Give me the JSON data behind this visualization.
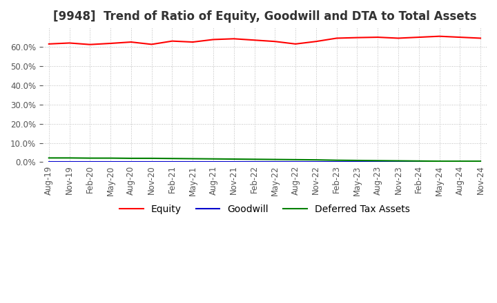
{
  "title": "[9948]  Trend of Ratio of Equity, Goodwill and DTA to Total Assets",
  "x_labels": [
    "Aug-19",
    "Nov-19",
    "Feb-20",
    "May-20",
    "Aug-20",
    "Nov-20",
    "Feb-21",
    "May-21",
    "Aug-21",
    "Nov-21",
    "Feb-22",
    "May-22",
    "Aug-22",
    "Nov-22",
    "Feb-23",
    "May-23",
    "Aug-23",
    "Nov-23",
    "Feb-24",
    "May-24",
    "Aug-24",
    "Nov-24"
  ],
  "equity": [
    61.5,
    62.0,
    61.2,
    61.8,
    62.5,
    61.3,
    63.0,
    62.5,
    63.8,
    64.2,
    63.5,
    62.8,
    61.5,
    62.8,
    64.5,
    64.8,
    65.0,
    64.5,
    65.0,
    65.5,
    65.0,
    64.5
  ],
  "goodwill": [
    0.05,
    0.05,
    0.05,
    0.05,
    0.05,
    0.05,
    0.05,
    0.05,
    0.05,
    0.05,
    0.05,
    0.05,
    0.05,
    0.05,
    0.05,
    0.05,
    0.05,
    0.05,
    0.05,
    0.05,
    0.05,
    0.05
  ],
  "dta": [
    2.2,
    2.2,
    2.1,
    2.1,
    2.0,
    2.0,
    1.9,
    1.8,
    1.7,
    1.6,
    1.5,
    1.4,
    1.3,
    1.2,
    1.0,
    0.9,
    0.8,
    0.7,
    0.6,
    0.5,
    0.5,
    0.5
  ],
  "equity_color": "#ff0000",
  "goodwill_color": "#0000cc",
  "dta_color": "#008000",
  "ylim_min": 0,
  "ylim_max": 70,
  "ytick_values": [
    0,
    10,
    20,
    30,
    40,
    50,
    60
  ],
  "background_color": "#ffffff",
  "grid_color": "#aaaaaa",
  "title_fontsize": 12,
  "tick_fontsize": 8.5,
  "legend_fontsize": 10,
  "linewidth": 1.5
}
